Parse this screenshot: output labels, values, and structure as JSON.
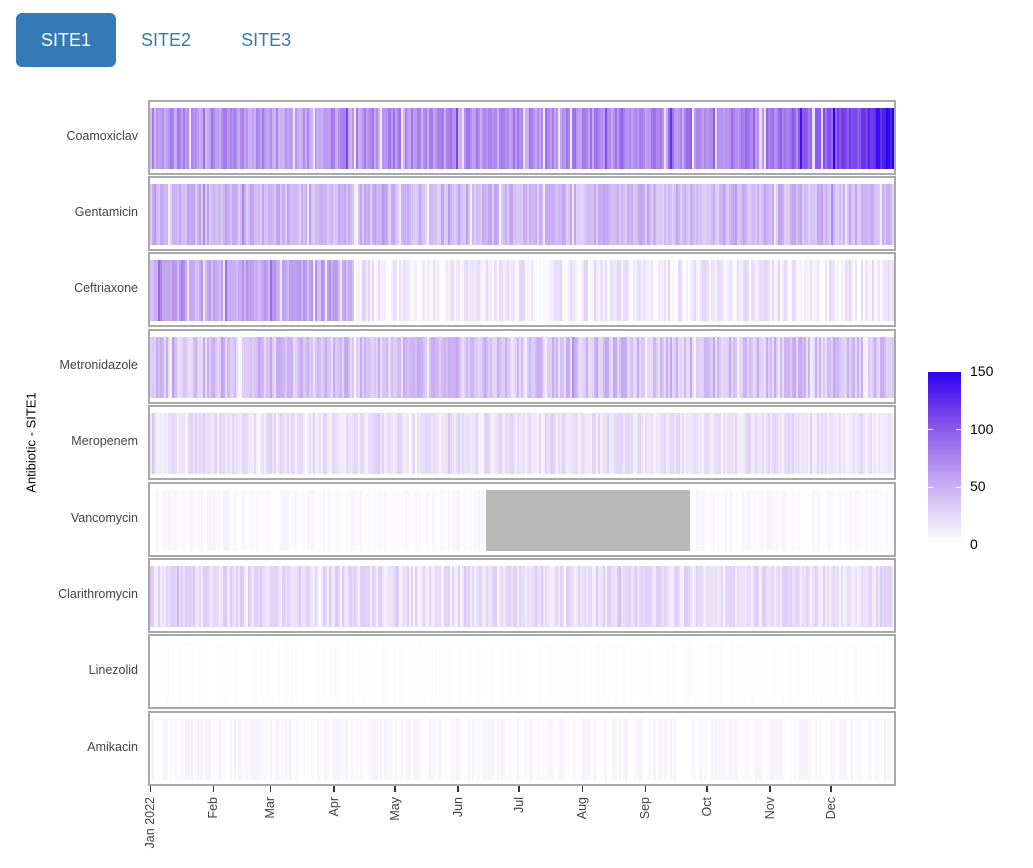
{
  "tabs": {
    "items": [
      {
        "label": "SITE1",
        "active": true
      },
      {
        "label": "SITE2",
        "active": false
      },
      {
        "label": "SITE3",
        "active": false
      }
    ],
    "active_bg": "#337ab7",
    "link_color": "#337ab7"
  },
  "chart_data": {
    "type": "heatmap",
    "title": "",
    "y_axis_title": "Antibiotic - SITE1",
    "x_axis": {
      "domain": [
        "2022-01-01",
        "2022-12-31"
      ],
      "tick_labels": [
        "Jan 2022",
        "Feb",
        "Mar",
        "Apr",
        "May",
        "Jun",
        "Jul",
        "Aug",
        "Sep",
        "Oct",
        "Nov",
        "Dec"
      ],
      "tick_days": [
        0,
        31,
        59,
        90,
        120,
        151,
        181,
        212,
        243,
        273,
        304,
        334
      ],
      "days_in_year": 365
    },
    "antibiotics": [
      "Coamoxiclav",
      "Gentamicin",
      "Ceftriaxone",
      "Metronidazole",
      "Meropenem",
      "Vancomycin",
      "Clarithromycin",
      "Linezolid",
      "Amikacin"
    ],
    "values_description": "Estimated daily usage intensity per antibiotic (one vertical stripe per day); control_points are [day_of_year, value] estimates read from the colour scale, variability is the day-to-day spread",
    "series": [
      {
        "name": "Coamoxiclav",
        "control_points": [
          [
            0,
            64
          ],
          [
            90,
            66
          ],
          [
            180,
            68
          ],
          [
            270,
            72
          ],
          [
            310,
            80
          ],
          [
            335,
            95
          ],
          [
            350,
            115
          ],
          [
            364,
            148
          ]
        ],
        "variability": 20
      },
      {
        "name": "Gentamicin",
        "control_points": [
          [
            0,
            46
          ],
          [
            180,
            44
          ],
          [
            364,
            44
          ]
        ],
        "variability": 15
      },
      {
        "name": "Ceftriaxone",
        "control_points": [
          [
            0,
            54
          ],
          [
            97,
            54
          ],
          [
            100,
            14
          ],
          [
            364,
            13
          ]
        ],
        "variability": 15
      },
      {
        "name": "Metronidazole",
        "control_points": [
          [
            0,
            38
          ],
          [
            364,
            38
          ]
        ],
        "variability": 18
      },
      {
        "name": "Meropenem",
        "control_points": [
          [
            0,
            21
          ],
          [
            364,
            19
          ]
        ],
        "variability": 11
      },
      {
        "name": "Vancomycin",
        "control_points": [
          [
            0,
            4
          ],
          [
            364,
            4
          ]
        ],
        "variability": 4,
        "na_days": [
          165,
          264
        ]
      },
      {
        "name": "Clarithromycin",
        "control_points": [
          [
            0,
            24
          ],
          [
            364,
            22
          ]
        ],
        "variability": 13
      },
      {
        "name": "Linezolid",
        "control_points": [
          [
            0,
            1
          ],
          [
            364,
            1
          ]
        ],
        "variability": 2
      },
      {
        "name": "Amikacin",
        "control_points": [
          [
            0,
            5
          ],
          [
            364,
            4
          ]
        ],
        "variability": 5
      }
    ],
    "annotations": {
      "coamoxiclav_peak": "ramps up to ~150 in late December 2022",
      "ceftriaxone_step": "drops from ~55 to ~13 around 10 Apr 2022",
      "vancomycin_missing": "grey NA block from mid-June to late September 2022"
    },
    "colorscale": {
      "min": 0,
      "max": 150,
      "tick_values": [
        0,
        50,
        100,
        150
      ],
      "stops": [
        {
          "v": 0,
          "c": "#ffffff"
        },
        {
          "v": 37.5,
          "c": "#d9c6f6"
        },
        {
          "v": 75,
          "c": "#ad85ee"
        },
        {
          "v": 112.5,
          "c": "#7a45ea"
        },
        {
          "v": 150,
          "c": "#2a00f2"
        }
      ],
      "na_color": "#b9b9b9",
      "legend_position": "right"
    },
    "style": {
      "panel_border": "#a9a9a9",
      "axis_text_color": "#444444",
      "tick_color": "#333333",
      "background": "#ffffff"
    }
  }
}
